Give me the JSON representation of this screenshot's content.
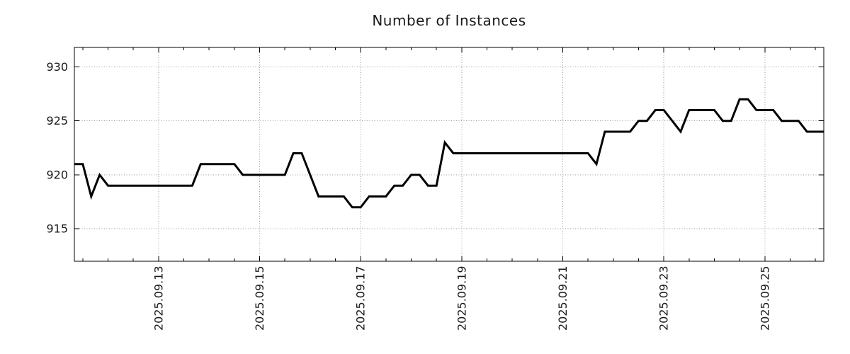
{
  "chart_data": {
    "type": "line",
    "title": "Number of Instances",
    "series": [
      {
        "name": "instances",
        "start_time": "2025-09-11 08:00",
        "step_hours": 4,
        "values": [
          921,
          921,
          918,
          920,
          919,
          919,
          919,
          919,
          919,
          919,
          919,
          919,
          919,
          919,
          919,
          921,
          921,
          921,
          921,
          921,
          920,
          920,
          920,
          920,
          920,
          920,
          922,
          922,
          920,
          918,
          918,
          918,
          918,
          917,
          917,
          918,
          918,
          918,
          919,
          919,
          920,
          920,
          919,
          919,
          923,
          922,
          922,
          922,
          922,
          922,
          922,
          922,
          922,
          922,
          922,
          922,
          922,
          922,
          922,
          922,
          922,
          922,
          921,
          924,
          924,
          924,
          924,
          925,
          925,
          926,
          926,
          925,
          924,
          926,
          926,
          926,
          926,
          925,
          925,
          927,
          927,
          926,
          926,
          926,
          925,
          925,
          925,
          924,
          924,
          924
        ]
      }
    ],
    "xlabel": "",
    "ylabel": "",
    "y_ticks": [
      915,
      920,
      925,
      930
    ],
    "ylim": [
      912.0,
      931.8
    ],
    "xlim_days": [
      0.3333,
      15.1667
    ],
    "x_major_ticks": [
      {
        "t": 2,
        "label": "2025.09.13"
      },
      {
        "t": 4,
        "label": "2025.09.15"
      },
      {
        "t": 6,
        "label": "2025.09.17"
      },
      {
        "t": 8,
        "label": "2025.09.19"
      },
      {
        "t": 10,
        "label": "2025.09.21"
      },
      {
        "t": 12,
        "label": "2025.09.23"
      },
      {
        "t": 14,
        "label": "2025.09.25"
      }
    ],
    "x_minor_first_day": 0.5,
    "x_minor_last_day": 15.0,
    "x_minor_step_days": 0.5,
    "grid": "dotted gridlines at major ticks, both axes",
    "legend_position": "none",
    "line_color": "#000000",
    "grid_color": "#9a9a9a",
    "axis_color": "#000000",
    "text_color": "#1a1a1a",
    "background": "#ffffff"
  }
}
